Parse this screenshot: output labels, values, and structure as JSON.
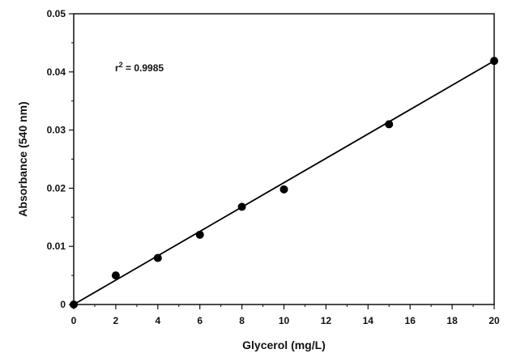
{
  "chart_data": {
    "type": "scatter",
    "title": "",
    "xlabel": "Glycerol (mg/L)",
    "ylabel": "Absorbance (540 nm)",
    "xlim": [
      0,
      20
    ],
    "ylim": [
      0,
      0.05
    ],
    "x_ticks": [
      "0",
      "2",
      "4",
      "6",
      "8",
      "10",
      "12",
      "14",
      "16",
      "18",
      "20"
    ],
    "y_ticks": [
      "0",
      "0.01",
      "0.02",
      "0.03",
      "0.04",
      "0.05"
    ],
    "x_tick_values": [
      0,
      2,
      4,
      6,
      8,
      10,
      12,
      14,
      16,
      18,
      20
    ],
    "y_tick_values": [
      0,
      0.01,
      0.02,
      0.03,
      0.04,
      0.05
    ],
    "grid": false,
    "legend": "none",
    "series": [
      {
        "points": [
          {
            "x": 0,
            "y": 0
          },
          {
            "x": 2,
            "y": 0.005
          },
          {
            "x": 4,
            "y": 0.008
          },
          {
            "x": 6,
            "y": 0.012
          },
          {
            "x": 8,
            "y": 0.0168
          },
          {
            "x": 10,
            "y": 0.0198
          },
          {
            "x": 15,
            "y": 0.031
          },
          {
            "x": 20,
            "y": 0.0419
          }
        ]
      }
    ],
    "fit_line": {
      "x": [
        0,
        20
      ],
      "y": [
        0,
        0.0419
      ]
    },
    "annotation": {
      "prefix": "r",
      "superscript": "2",
      "suffix": " = 0.9985"
    },
    "colors": {
      "axis": "#111111",
      "marker": "#000000",
      "line": "#000000"
    }
  }
}
